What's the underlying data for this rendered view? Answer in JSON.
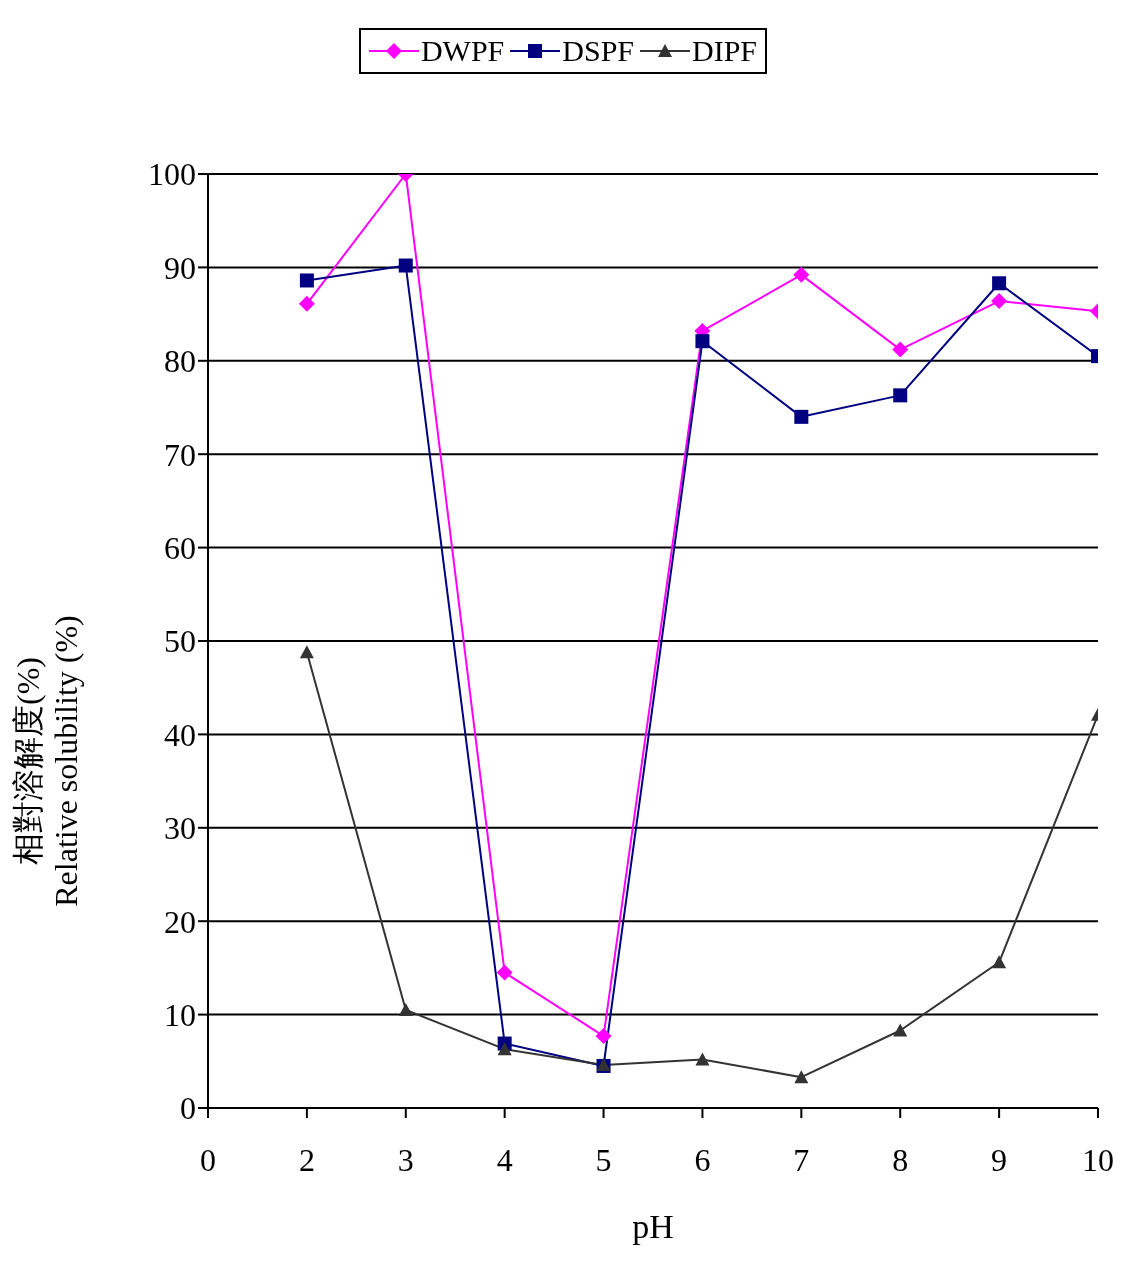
{
  "chart_data": {
    "type": "line",
    "xlabel": "pH",
    "ylabel": "相對溶解度(%)\nRelative solubility (%)",
    "categories": [
      "0",
      "2",
      "3",
      "4",
      "5",
      "6",
      "7",
      "8",
      "9",
      "10"
    ],
    "ylim": [
      0,
      100
    ],
    "yticks": [
      0,
      10,
      20,
      30,
      40,
      50,
      60,
      70,
      80,
      90,
      100
    ],
    "grid": "y",
    "legend": "top",
    "series": [
      {
        "name": "DWPF",
        "color": "#ff00ff",
        "marker": "diamond",
        "values": [
          null,
          86.1,
          100,
          14.5,
          7.7,
          83.2,
          89.2,
          81.2,
          86.4,
          85.3
        ]
      },
      {
        "name": "DSPF",
        "color": "#000080",
        "marker": "square",
        "values": [
          null,
          88.6,
          90.2,
          6.9,
          4.5,
          82.1,
          74.0,
          76.3,
          88.3,
          80.5
        ]
      },
      {
        "name": "DIPF",
        "color": "#333333",
        "marker": "triangle",
        "values": [
          null,
          48.8,
          10.5,
          6.3,
          4.6,
          5.2,
          3.3,
          8.3,
          15.6,
          42.1
        ]
      }
    ]
  }
}
